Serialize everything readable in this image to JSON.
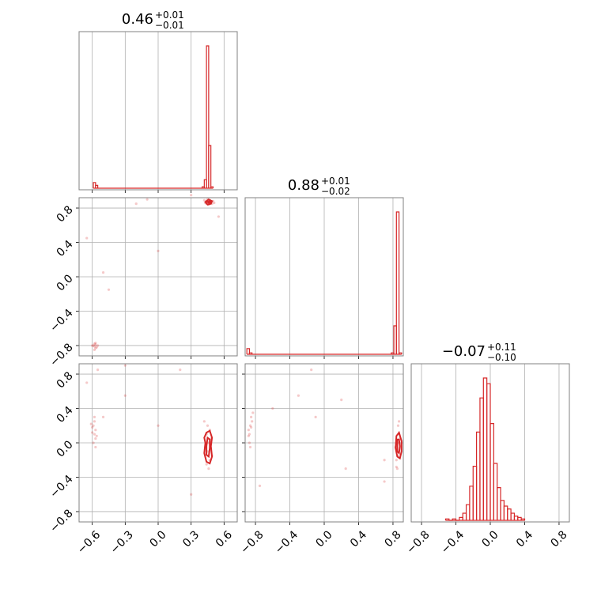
{
  "chart_data": {
    "type": "corner",
    "color": "#d62728",
    "parameters": [
      {
        "title": {
          "median": "0.46",
          "plus": "+0.01",
          "minus": "−0.01"
        },
        "range": [
          -0.72,
          0.72
        ],
        "ticks": [
          -0.6,
          -0.3,
          0.0,
          0.3,
          0.6
        ],
        "tick_labels": [
          "−0.6",
          "−0.3",
          "0.0",
          "0.3",
          "0.6"
        ],
        "histogram": {
          "bins": [
            {
              "x0": -0.59,
              "x1": -0.57,
              "h": 0.04
            },
            {
              "x0": -0.57,
              "x1": -0.55,
              "h": 0.02
            },
            {
              "x0": 0.4,
              "x1": 0.42,
              "h": 0.01
            },
            {
              "x0": 0.42,
              "x1": 0.44,
              "h": 0.06
            },
            {
              "x0": 0.44,
              "x1": 0.46,
              "h": 1.0
            },
            {
              "x0": 0.46,
              "x1": 0.48,
              "h": 0.3
            },
            {
              "x0": 0.48,
              "x1": 0.5,
              "h": 0.01
            }
          ]
        }
      },
      {
        "title": {
          "median": "0.88",
          "plus": "+0.01",
          "minus": "−0.02"
        },
        "range": [
          -0.92,
          0.92
        ],
        "ticks": [
          -0.8,
          -0.4,
          0.0,
          0.4,
          0.8
        ],
        "tick_labels": [
          "−0.8",
          "−0.4",
          "0.0",
          "0.4",
          "0.8"
        ],
        "histogram": {
          "bins": [
            {
              "x0": -0.9,
              "x1": -0.87,
              "h": 0.04
            },
            {
              "x0": -0.87,
              "x1": -0.84,
              "h": 0.01
            },
            {
              "x0": 0.78,
              "x1": 0.81,
              "h": 0.01
            },
            {
              "x0": 0.81,
              "x1": 0.84,
              "h": 0.2
            },
            {
              "x0": 0.84,
              "x1": 0.87,
              "h": 1.0
            },
            {
              "x0": 0.87,
              "x1": 0.9,
              "h": 0.01
            }
          ]
        }
      },
      {
        "title": {
          "median": "−0.07",
          "plus": "+0.11",
          "minus": "−0.10"
        },
        "range": [
          -0.92,
          0.92
        ],
        "ticks": [
          -0.8,
          -0.4,
          0.0,
          0.4,
          0.8
        ],
        "tick_labels": [
          "−0.8",
          "−0.4",
          "0.0",
          "0.4",
          "0.8"
        ],
        "histogram": {
          "bins": [
            {
              "x0": -0.52,
              "x1": -0.48,
              "h": 0.01
            },
            {
              "x0": -0.48,
              "x1": -0.44,
              "h": 0.0
            },
            {
              "x0": -0.44,
              "x1": -0.4,
              "h": 0.01
            },
            {
              "x0": -0.4,
              "x1": -0.36,
              "h": 0.0
            },
            {
              "x0": -0.36,
              "x1": -0.32,
              "h": 0.02
            },
            {
              "x0": -0.32,
              "x1": -0.28,
              "h": 0.05
            },
            {
              "x0": -0.28,
              "x1": -0.24,
              "h": 0.11
            },
            {
              "x0": -0.24,
              "x1": -0.2,
              "h": 0.24
            },
            {
              "x0": -0.2,
              "x1": -0.16,
              "h": 0.38
            },
            {
              "x0": -0.16,
              "x1": -0.12,
              "h": 0.62
            },
            {
              "x0": -0.12,
              "x1": -0.08,
              "h": 0.86
            },
            {
              "x0": -0.08,
              "x1": -0.04,
              "h": 1.0
            },
            {
              "x0": -0.04,
              "x1": 0.0,
              "h": 0.96
            },
            {
              "x0": 0.0,
              "x1": 0.04,
              "h": 0.68
            },
            {
              "x0": 0.04,
              "x1": 0.08,
              "h": 0.4
            },
            {
              "x0": 0.08,
              "x1": 0.12,
              "h": 0.23
            },
            {
              "x0": 0.12,
              "x1": 0.16,
              "h": 0.14
            },
            {
              "x0": 0.16,
              "x1": 0.2,
              "h": 0.1
            },
            {
              "x0": 0.2,
              "x1": 0.24,
              "h": 0.08
            },
            {
              "x0": 0.24,
              "x1": 0.28,
              "h": 0.05
            },
            {
              "x0": 0.28,
              "x1": 0.32,
              "h": 0.03
            },
            {
              "x0": 0.32,
              "x1": 0.36,
              "h": 0.02
            },
            {
              "x0": 0.36,
              "x1": 0.4,
              "h": 0.01
            }
          ]
        }
      }
    ],
    "scatter_2d": [
      {
        "row": 1,
        "col": 0,
        "points": [
          [
            0.44,
            0.88
          ],
          [
            0.46,
            0.87
          ],
          [
            0.48,
            0.86
          ],
          [
            0.45,
            0.9
          ],
          [
            0.47,
            0.89
          ],
          [
            0.43,
            0.86
          ],
          [
            0.5,
            0.88
          ],
          [
            0.49,
            0.85
          ],
          [
            0.42,
            0.89
          ],
          [
            0.46,
            0.84
          ],
          [
            0.51,
            0.86
          ],
          [
            0.44,
            0.85
          ],
          [
            -0.57,
            -0.79
          ],
          [
            -0.58,
            -0.81
          ],
          [
            -0.59,
            -0.8
          ],
          [
            -0.56,
            -0.82
          ],
          [
            -0.58,
            -0.78
          ],
          [
            -0.57,
            -0.83
          ],
          [
            -0.6,
            -0.8
          ],
          [
            -0.55,
            -0.8
          ],
          [
            -0.58,
            -0.85
          ],
          [
            -0.57,
            -0.77
          ],
          [
            -0.5,
            0.05
          ],
          [
            -0.2,
            0.85
          ],
          [
            -0.1,
            0.9
          ],
          [
            -0.45,
            -0.15
          ],
          [
            0.0,
            0.3
          ],
          [
            0.55,
            0.7
          ],
          [
            -0.65,
            0.45
          ],
          [
            0.3,
            0.95
          ]
        ],
        "contours": [
          [
            [
              0.43,
              0.87
            ],
            [
              0.46,
              0.9
            ],
            [
              0.49,
              0.88
            ],
            [
              0.48,
              0.85
            ],
            [
              0.45,
              0.84
            ],
            [
              0.43,
              0.87
            ]
          ],
          [
            [
              0.45,
              0.87
            ],
            [
              0.47,
              0.88
            ],
            [
              0.48,
              0.87
            ],
            [
              0.46,
              0.86
            ],
            [
              0.45,
              0.87
            ]
          ]
        ]
      },
      {
        "row": 2,
        "col": 0,
        "points": [
          [
            -0.58,
            0.1
          ],
          [
            -0.57,
            0.15
          ],
          [
            -0.59,
            0.2
          ],
          [
            -0.58,
            0.25
          ],
          [
            -0.57,
            0.05
          ],
          [
            -0.6,
            0.18
          ],
          [
            -0.58,
            0.3
          ],
          [
            -0.59,
            0.0
          ],
          [
            -0.57,
            -0.05
          ],
          [
            -0.6,
            0.12
          ],
          [
            -0.61,
            0.22
          ],
          [
            -0.56,
            0.08
          ],
          [
            0.45,
            -0.1
          ],
          [
            0.46,
            0.0
          ],
          [
            0.44,
            0.1
          ],
          [
            0.47,
            -0.2
          ],
          [
            0.45,
            0.2
          ],
          [
            0.46,
            -0.3
          ],
          [
            0.48,
            0.05
          ],
          [
            0.43,
            -0.05
          ],
          [
            0.47,
            0.15
          ],
          [
            0.44,
            -0.25
          ],
          [
            0.49,
            -0.15
          ],
          [
            0.42,
            0.25
          ],
          [
            -0.55,
            0.85
          ],
          [
            -0.3,
            0.55
          ],
          [
            -0.5,
            0.3
          ],
          [
            0.2,
            0.85
          ],
          [
            -0.3,
            0.9
          ],
          [
            0.0,
            0.2
          ],
          [
            -0.65,
            0.7
          ],
          [
            0.3,
            -0.6
          ]
        ],
        "contours": [
          [
            [
              0.44,
              0.12
            ],
            [
              0.47,
              0.14
            ],
            [
              0.49,
              0.06
            ],
            [
              0.48,
              -0.04
            ],
            [
              0.49,
              -0.16
            ],
            [
              0.47,
              -0.24
            ],
            [
              0.44,
              -0.22
            ],
            [
              0.42,
              -0.12
            ],
            [
              0.43,
              0.0
            ],
            [
              0.42,
              0.06
            ],
            [
              0.44,
              0.12
            ]
          ],
          [
            [
              0.45,
              0.06
            ],
            [
              0.47,
              0.04
            ],
            [
              0.47,
              -0.06
            ],
            [
              0.46,
              -0.16
            ],
            [
              0.44,
              -0.14
            ],
            [
              0.44,
              -0.04
            ],
            [
              0.45,
              0.06
            ]
          ]
        ]
      },
      {
        "row": 2,
        "col": 1,
        "points": [
          [
            -0.87,
            0.1
          ],
          [
            -0.86,
            0.2
          ],
          [
            -0.88,
            0.15
          ],
          [
            -0.85,
            0.3
          ],
          [
            -0.87,
            0.0
          ],
          [
            -0.84,
            0.25
          ],
          [
            -0.86,
            -0.05
          ],
          [
            -0.83,
            0.35
          ],
          [
            -0.88,
            0.08
          ],
          [
            -0.85,
            0.18
          ],
          [
            0.85,
            -0.1
          ],
          [
            0.86,
            0.0
          ],
          [
            0.87,
            0.1
          ],
          [
            0.84,
            -0.2
          ],
          [
            0.86,
            0.2
          ],
          [
            0.85,
            -0.3
          ],
          [
            0.88,
            0.05
          ],
          [
            0.83,
            -0.05
          ],
          [
            0.87,
            0.25
          ],
          [
            0.84,
            -0.28
          ],
          [
            0.86,
            -0.15
          ],
          [
            -0.3,
            0.55
          ],
          [
            -0.15,
            0.85
          ],
          [
            0.7,
            -0.2
          ],
          [
            0.25,
            -0.3
          ],
          [
            -0.6,
            0.4
          ],
          [
            -0.75,
            -0.5
          ],
          [
            0.2,
            0.5
          ],
          [
            0.7,
            -0.45
          ],
          [
            -0.1,
            0.3
          ]
        ],
        "contours": [
          [
            [
              0.84,
              0.08
            ],
            [
              0.87,
              0.12
            ],
            [
              0.9,
              0.02
            ],
            [
              0.9,
              -0.1
            ],
            [
              0.88,
              -0.18
            ],
            [
              0.85,
              -0.16
            ],
            [
              0.83,
              -0.06
            ],
            [
              0.84,
              0.08
            ]
          ],
          [
            [
              0.85,
              0.04
            ],
            [
              0.87,
              0.04
            ],
            [
              0.88,
              -0.04
            ],
            [
              0.87,
              -0.12
            ],
            [
              0.85,
              -0.1
            ],
            [
              0.85,
              0.04
            ]
          ]
        ]
      }
    ]
  }
}
